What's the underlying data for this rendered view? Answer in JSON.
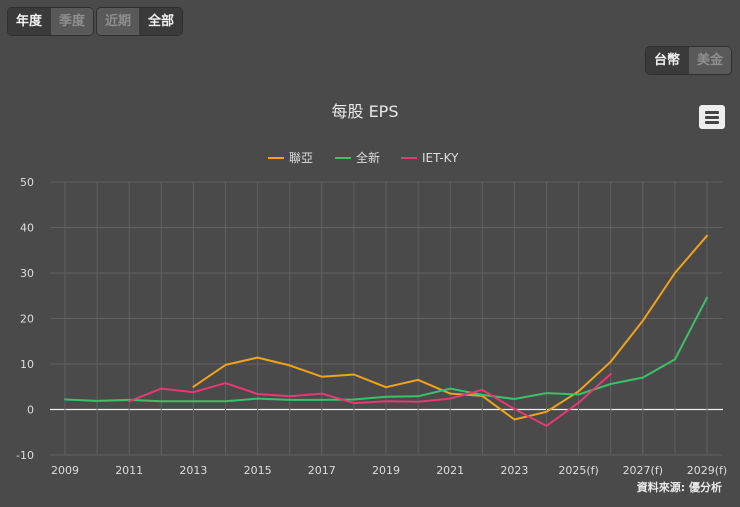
{
  "period_tabs": [
    {
      "label": "年度",
      "active": true
    },
    {
      "label": "季度",
      "active": false
    }
  ],
  "range_tabs": [
    {
      "label": "近期",
      "active": false
    },
    {
      "label": "全部",
      "active": true
    }
  ],
  "currency_tabs": [
    {
      "label": "台幣",
      "active": true
    },
    {
      "label": "美金",
      "active": false
    }
  ],
  "menu_icon": "hamburger-menu-icon",
  "credit": "資料來源: 優分析",
  "colors": {
    "background": "#4a4a4a",
    "grid": "#606060",
    "zero_line": "#f0f0f0",
    "text": "#dddddd"
  },
  "chart_data": {
    "type": "line",
    "title": "每股 EPS",
    "xlabel": "",
    "ylabel": "",
    "ylim": [
      -10,
      50
    ],
    "yticks": [
      -10,
      0,
      10,
      20,
      30,
      40,
      50
    ],
    "categories": [
      "2009",
      "2010",
      "2011",
      "2012",
      "2013",
      "2014",
      "2015",
      "2016",
      "2017",
      "2018",
      "2019",
      "2020",
      "2021",
      "2022",
      "2023",
      "2024",
      "2025(f)",
      "2026(f)",
      "2027(f)",
      "2028(f)",
      "2029(f)"
    ],
    "xtick_labels": [
      "2009",
      "2011",
      "2013",
      "2015",
      "2017",
      "2019",
      "2021",
      "2023",
      "2025(f)",
      "2027(f)",
      "2029(f)"
    ],
    "series": [
      {
        "name": "聯亞",
        "color": "#f0a21c",
        "values": [
          null,
          null,
          null,
          null,
          5.0,
          9.8,
          11.4,
          9.7,
          7.2,
          7.7,
          4.9,
          6.5,
          3.5,
          3.0,
          -2.2,
          -0.5,
          4.0,
          10.5,
          19.5,
          30.0,
          38.2
        ]
      },
      {
        "name": "全新",
        "color": "#3cc069",
        "values": [
          2.2,
          1.9,
          2.1,
          1.8,
          1.8,
          1.8,
          2.4,
          2.1,
          2.1,
          2.2,
          2.8,
          2.9,
          4.6,
          3.2,
          2.3,
          3.6,
          3.3,
          5.6,
          7.0,
          11.0,
          24.6
        ]
      },
      {
        "name": "IET-KY",
        "color": "#e53974",
        "values": [
          null,
          null,
          1.8,
          4.6,
          3.8,
          5.8,
          3.4,
          2.9,
          3.5,
          1.4,
          1.8,
          1.7,
          2.4,
          4.3,
          0.1,
          -3.6,
          1.5,
          7.8,
          null,
          null,
          null
        ]
      }
    ]
  }
}
